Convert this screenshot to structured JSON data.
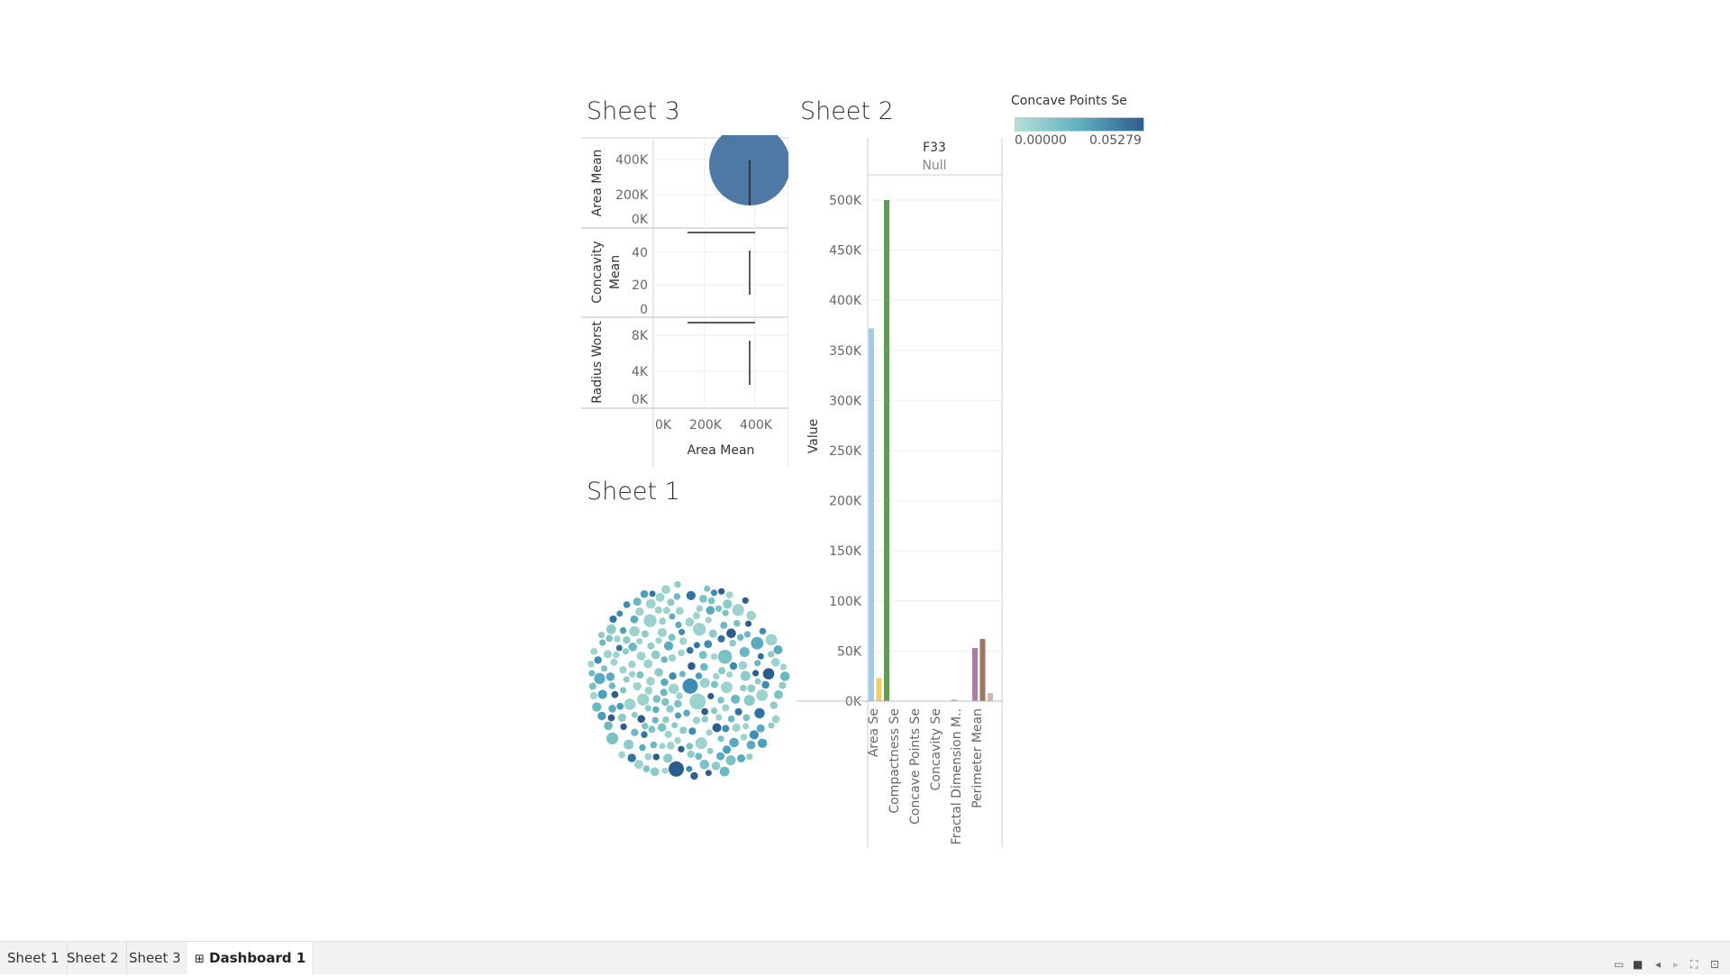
{
  "sheet3": {
    "title": "Sheet 3",
    "rows": [
      {
        "label": "Area Mean",
        "ticks": [
          "400K",
          "200K",
          "0K"
        ]
      },
      {
        "label_line1": "Concavity",
        "label_line2": "Mean",
        "ticks": [
          "40",
          "20",
          "0"
        ]
      },
      {
        "label": "Radius Worst",
        "ticks": [
          "8K",
          "4K",
          "0K"
        ]
      }
    ],
    "x_ticks": [
      "0K",
      "200K",
      "400K"
    ],
    "x_label": "Area Mean",
    "mark_color": "#4e79a7"
  },
  "sheet2": {
    "title": "Sheet 2",
    "header_title": "F33",
    "header_sub": "Null",
    "y_label": "Value",
    "y_ticks": [
      "500K",
      "450K",
      "400K",
      "350K",
      "300K",
      "250K",
      "200K",
      "150K",
      "100K",
      "50K",
      "0K"
    ],
    "categories": [
      "Area Se",
      "Compactness Se",
      "Concave Points Se",
      "Concavity Se",
      "Fractal Dimension M..",
      "Perimeter Mean"
    ]
  },
  "sheet1": {
    "title": "Sheet 1"
  },
  "legend": {
    "title": "Concave Points Se",
    "min_label": "0.00000",
    "max_label": "0.05279",
    "color_low": "#b5e0d8",
    "color_high": "#2c5d8f"
  },
  "tabs": [
    {
      "label": "Sheet 1"
    },
    {
      "label": "Sheet 2"
    },
    {
      "label": "Sheet 3"
    },
    {
      "label": "Dashboard 1",
      "icon": "dashboard-grid-icon"
    }
  ],
  "chart_data": {
    "type": "bar",
    "title": "Sheet 2",
    "ylabel": "Value",
    "ylim": [
      0,
      500000
    ],
    "categories": [
      "Area Se",
      "Compactness Se",
      "Concave Points Se",
      "Concavity Se",
      "Fractal Dimension M..",
      "Perimeter Mean"
    ],
    "bars": [
      {
        "group": 0,
        "value": 372000,
        "color": "#a0cbe8"
      },
      {
        "group": 0,
        "value": 23000,
        "color": "#f1ce63"
      },
      {
        "group": 0,
        "value": 500000,
        "color": "#59a14f"
      },
      {
        "group": 4,
        "value": 1500,
        "color": "#86bcb6"
      },
      {
        "group": 5,
        "value": 53000,
        "color": "#b07aa1"
      },
      {
        "group": 5,
        "value": 62000,
        "color": "#9d7660"
      },
      {
        "group": 5,
        "value": 8000,
        "color": "#d7b5a6"
      }
    ],
    "grid": true
  }
}
